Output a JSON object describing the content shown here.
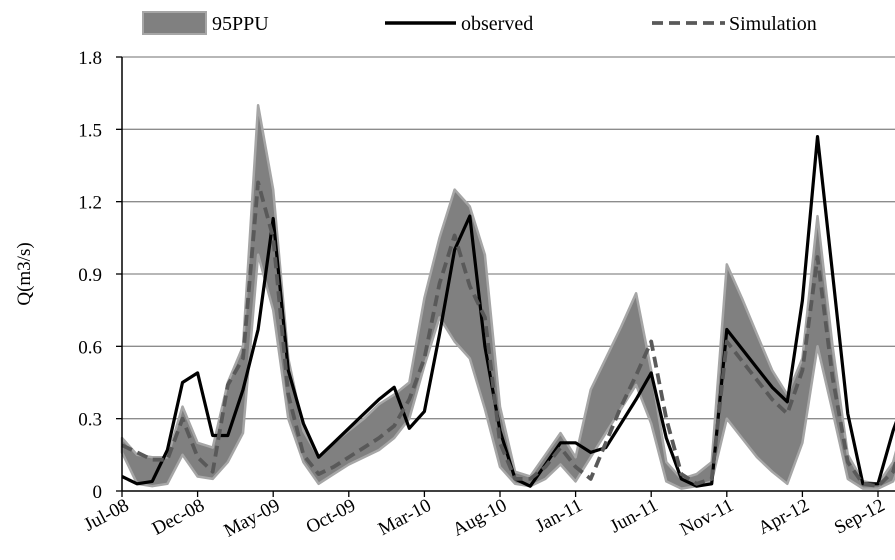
{
  "chart_data": {
    "type": "line",
    "title": "",
    "xlabel": "",
    "ylabel": "Q(m3/s)",
    "ylim": [
      0,
      1.8
    ],
    "yticks": [
      0,
      0.3,
      0.6,
      0.9,
      1.2,
      1.5,
      1.8
    ],
    "ytick_labels": [
      "0",
      "0.3",
      "0.6",
      "0.9",
      "1.2",
      "1.5",
      "1.8"
    ],
    "xticks": [
      "Jul-08",
      "Dec-08",
      "May-09",
      "Oct-09",
      "Mar-10",
      "Aug-10",
      "Jan-11",
      "Jun-11",
      "Nov-11",
      "Apr-12",
      "Sep-12"
    ],
    "x_start": "2008-07",
    "x_step": "month",
    "grid": true,
    "legend_position": "top",
    "legend": [
      "95PPU",
      "observed",
      "Simulation"
    ],
    "colors": {
      "band": "#808080",
      "band_edge": "#a6a6a6",
      "observed": "#000000",
      "simulation": "#595959",
      "grid": "#8c8c8c"
    },
    "series": [
      {
        "name": "95PPU",
        "kind": "band",
        "upper": [
          0.22,
          0.15,
          0.14,
          0.14,
          0.35,
          0.2,
          0.18,
          0.45,
          0.6,
          1.6,
          1.25,
          0.55,
          0.25,
          0.14,
          0.2,
          0.25,
          0.3,
          0.36,
          0.4,
          0.45,
          0.8,
          1.05,
          1.25,
          1.18,
          0.98,
          0.35,
          0.08,
          0.06,
          0.15,
          0.24,
          0.14,
          0.42,
          0.55,
          0.68,
          0.82,
          0.5,
          0.12,
          0.05,
          0.07,
          0.12,
          0.94,
          0.8,
          0.65,
          0.5,
          0.4,
          0.55,
          1.14,
          0.6,
          0.15,
          0.04,
          0.03,
          0.12,
          0.35,
          0.3
        ],
        "lower": [
          0.16,
          0.03,
          0.02,
          0.03,
          0.15,
          0.06,
          0.05,
          0.12,
          0.24,
          0.98,
          0.75,
          0.3,
          0.12,
          0.03,
          0.07,
          0.11,
          0.14,
          0.17,
          0.22,
          0.3,
          0.52,
          0.72,
          0.62,
          0.55,
          0.34,
          0.1,
          0.03,
          0.02,
          0.05,
          0.11,
          0.04,
          0.14,
          0.24,
          0.34,
          0.44,
          0.28,
          0.04,
          0.01,
          0.02,
          0.04,
          0.3,
          0.22,
          0.14,
          0.08,
          0.03,
          0.2,
          0.6,
          0.33,
          0.05,
          0.01,
          0.01,
          0.04,
          0.2,
          0.18
        ]
      },
      {
        "name": "observed",
        "kind": "line",
        "values": [
          0.06,
          0.03,
          0.04,
          0.17,
          0.45,
          0.49,
          0.23,
          0.23,
          0.42,
          0.67,
          1.13,
          0.5,
          0.28,
          0.14,
          0.2,
          0.26,
          0.32,
          0.38,
          0.43,
          0.26,
          0.33,
          0.65,
          1.0,
          1.14,
          0.6,
          0.25,
          0.05,
          0.02,
          0.11,
          0.2,
          0.2,
          0.16,
          0.18,
          0.28,
          0.38,
          0.49,
          0.22,
          0.05,
          0.02,
          0.03,
          0.67,
          0.59,
          0.51,
          0.43,
          0.37,
          0.79,
          1.47,
          0.9,
          0.32,
          0.03,
          0.03,
          0.25,
          0.42,
          0.43
        ]
      },
      {
        "name": "Simulation",
        "kind": "dashed",
        "values": [
          0.19,
          0.16,
          0.13,
          0.13,
          0.3,
          0.14,
          0.08,
          0.44,
          0.55,
          1.28,
          1.05,
          0.4,
          0.15,
          0.07,
          0.1,
          0.14,
          0.18,
          0.22,
          0.27,
          0.38,
          0.55,
          0.86,
          1.06,
          0.85,
          0.72,
          0.2,
          0.05,
          0.05,
          0.1,
          0.18,
          0.1,
          0.05,
          0.2,
          0.35,
          0.48,
          0.62,
          0.3,
          0.07,
          0.03,
          0.05,
          0.62,
          0.54,
          0.46,
          0.38,
          0.32,
          0.5,
          0.97,
          0.47,
          0.12,
          0.03,
          0.02,
          0.08,
          0.3,
          0.25
        ]
      }
    ]
  }
}
